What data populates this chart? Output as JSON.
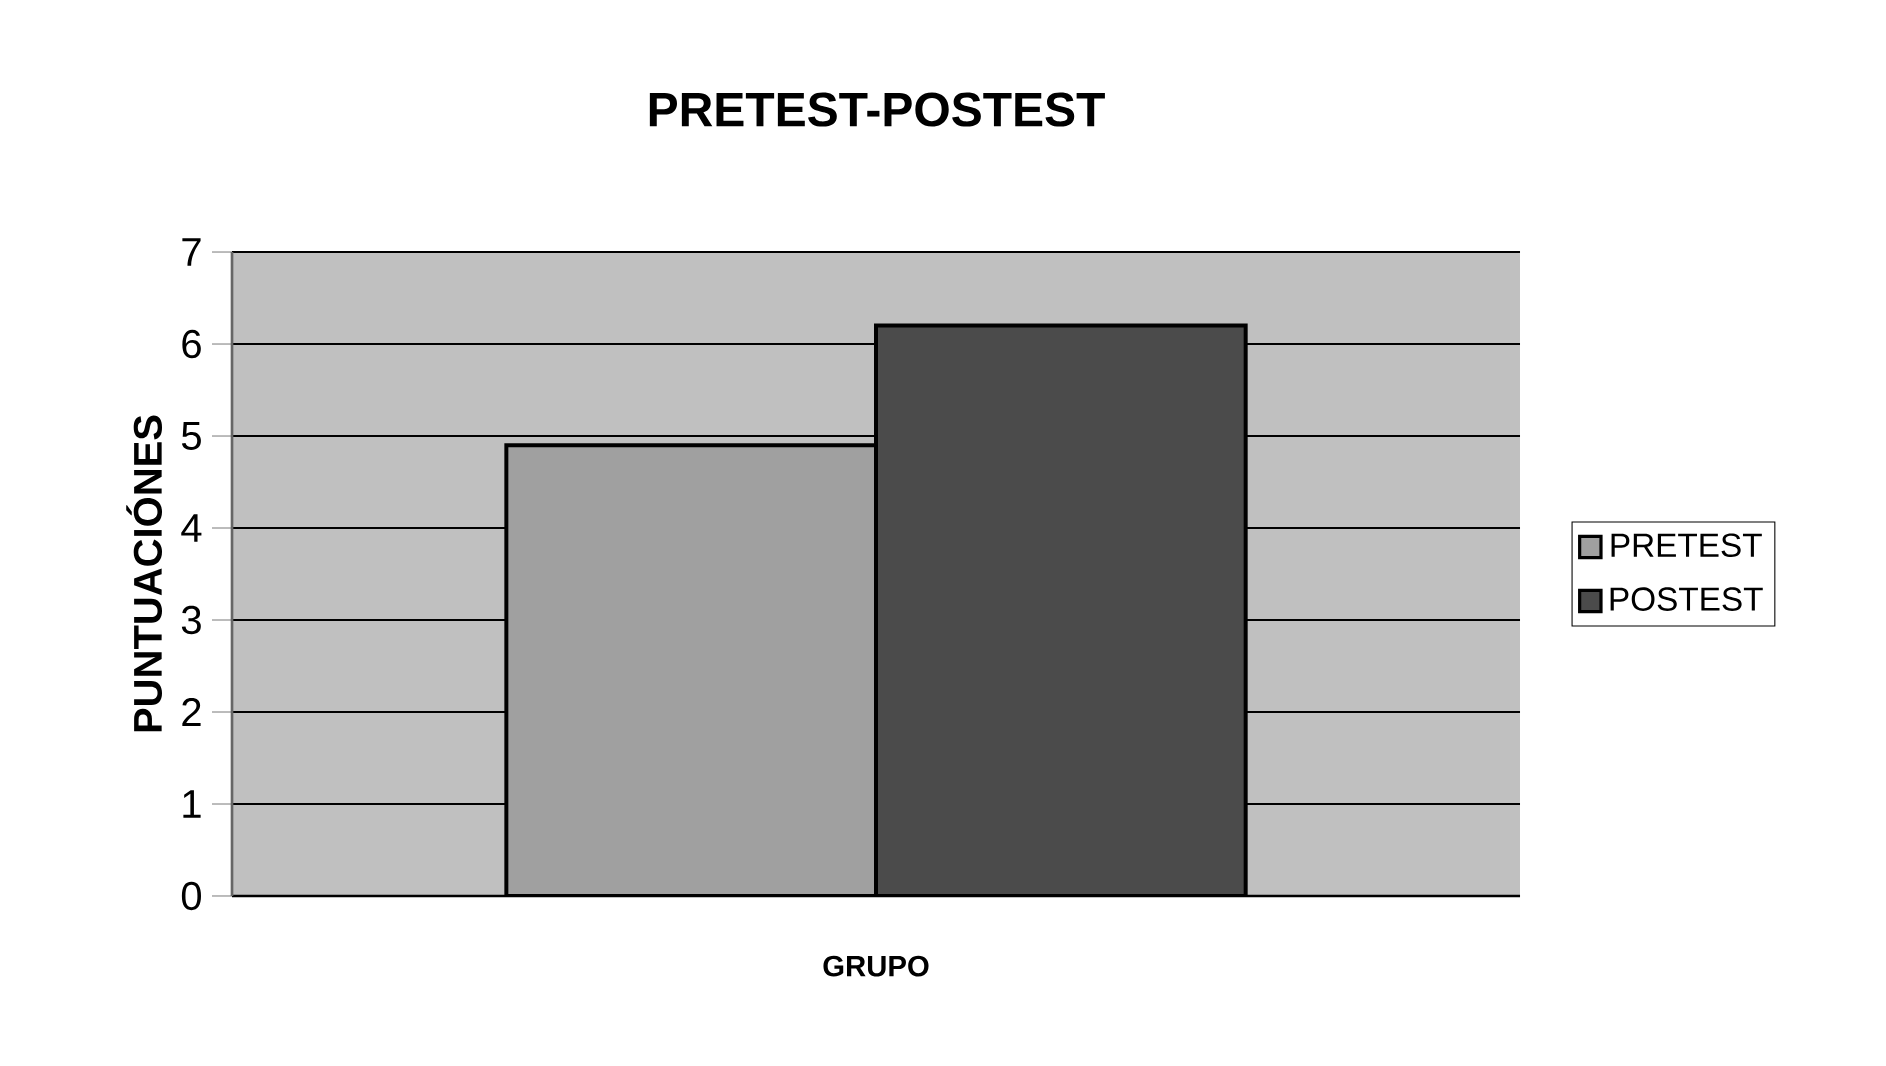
{
  "chart_data": {
    "type": "bar",
    "title": "PRETEST-POSTEST",
    "xlabel": "GRUPO",
    "ylabel": "PUNTUACIÓNES",
    "categories": [
      null
    ],
    "series": [
      {
        "name": "PRETEST",
        "color": "#a0a0a0",
        "values": [
          4.9
        ]
      },
      {
        "name": "POSTEST",
        "color": "#4b4b4b",
        "values": [
          6.2
        ]
      }
    ],
    "ylim": [
      0,
      7
    ],
    "yticks": [
      0,
      1,
      2,
      3,
      4,
      5,
      6,
      7
    ],
    "grid": "y",
    "legend": "right"
  }
}
